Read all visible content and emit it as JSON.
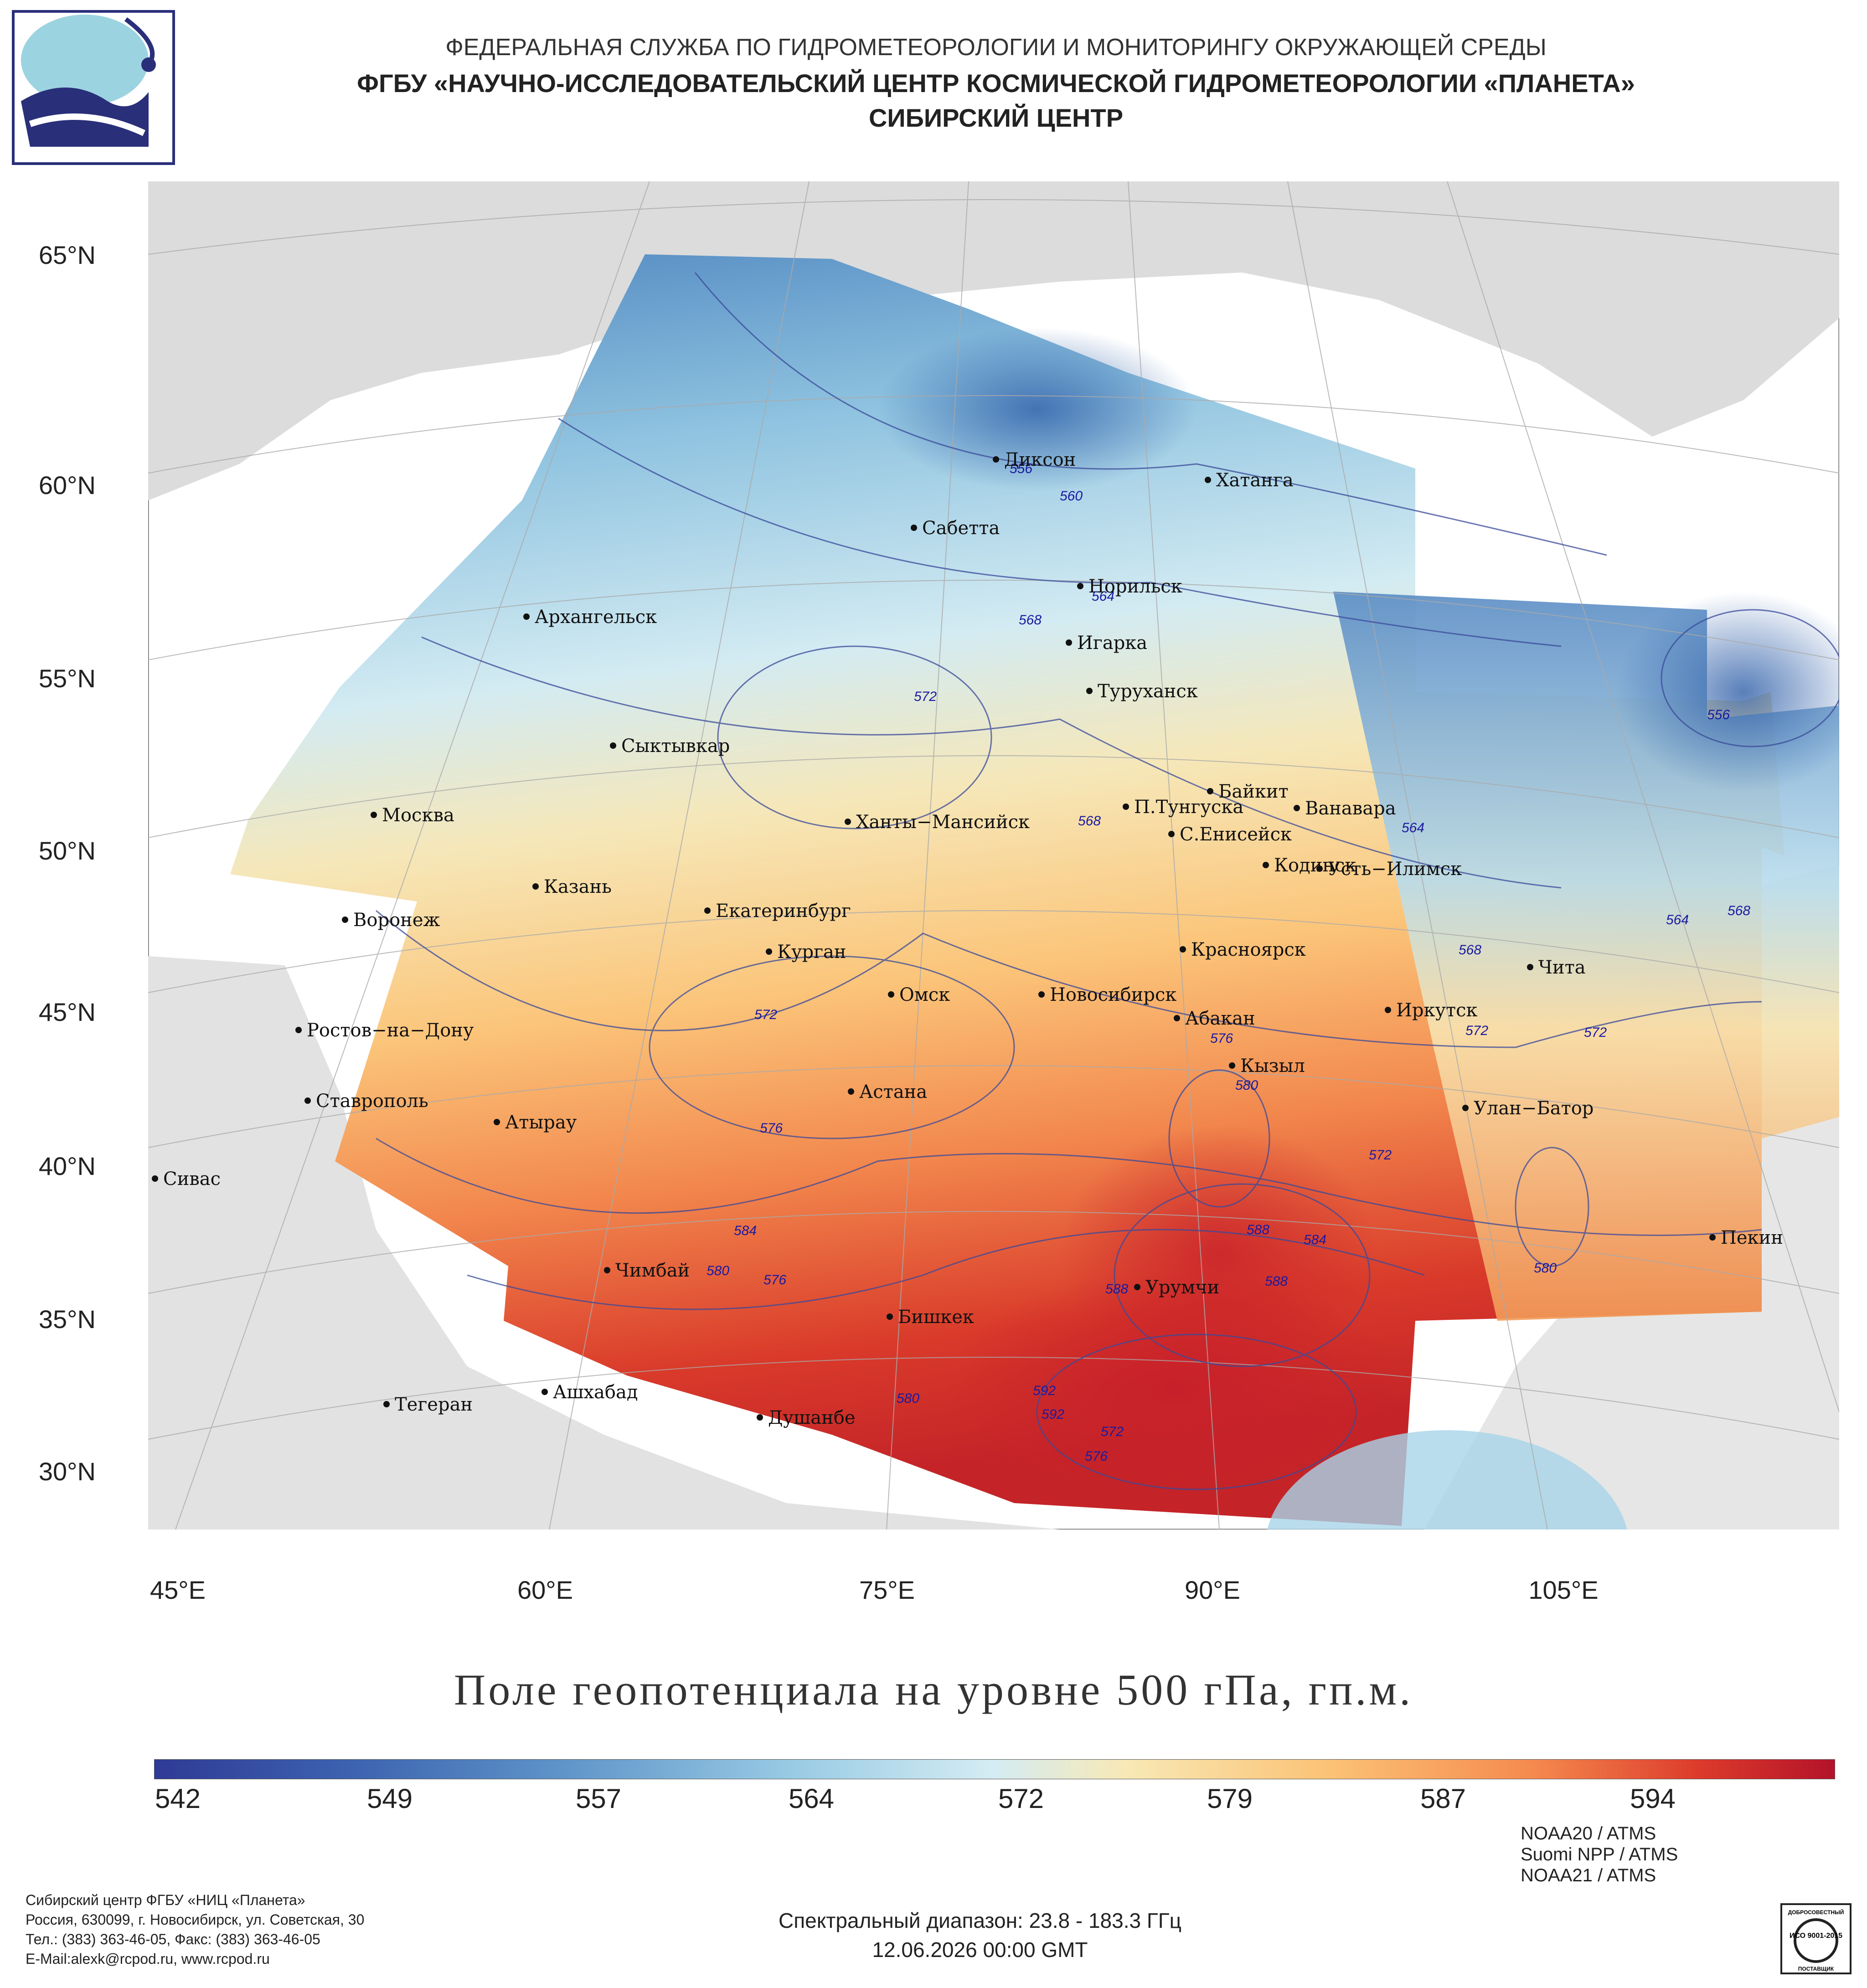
{
  "header": {
    "line1": "ФЕДЕРАЛЬНАЯ СЛУЖБА ПО ГИДРОМЕТЕОРОЛОГИИ И МОНИТОРИНГУ ОКРУЖАЮЩЕЙ СРЕДЫ",
    "line2": "ФГБУ «НАУЧНО-ИССЛЕДОВАТЕЛЬСКИЙ ЦЕНТР КОСМИЧЕСКОЙ ГИДРОМЕТЕОРОЛОГИИ «ПЛАНЕТА»",
    "line3": "СИБИРСКИЙ ЦЕНТР"
  },
  "map": {
    "lat_labels": [
      "65°N",
      "60°N",
      "55°N",
      "50°N",
      "45°N",
      "40°N",
      "35°N",
      "30°N"
    ],
    "lon_labels": [
      "45°E",
      "60°E",
      "75°E",
      "90°E",
      "105°E"
    ],
    "cities": [
      "Диксон",
      "Хатанга",
      "Сабетта",
      "Норильск",
      "Архангельск",
      "Игарка",
      "Туруханск",
      "Сыктывкар",
      "Байкит",
      "Москва",
      "П.Тунгуска",
      "Ванавара",
      "Ханты−Мансийск",
      "С.Енисейск",
      "Кодинск",
      "Усть−Илимск",
      "Казань",
      "Воронеж",
      "Екатеринбург",
      "Курган",
      "Красноярск",
      "Чита",
      "Омск",
      "Новосибирск",
      "Ростов−на−Дону",
      "Абакан",
      "Иркутск",
      "Кызыл",
      "Астана",
      "Ставрополь",
      "Улан−Батор",
      "Атырау",
      "Сивас",
      "Пекин",
      "Чимбай",
      "Урумчи",
      "Бишкек",
      "Ашхабад",
      "Тегеран",
      "Душанбе"
    ],
    "contour_labels": [
      "556",
      "560",
      "564",
      "568",
      "572",
      "576",
      "580",
      "584",
      "588",
      "592",
      "556",
      "564",
      "568",
      "568",
      "564",
      "568",
      "572",
      "576",
      "580",
      "584",
      "588",
      "588",
      "572",
      "580",
      "572",
      "572",
      "576",
      "580",
      "592",
      "572",
      "576"
    ],
    "colors": {
      "land": "#dcdcdc",
      "sea": "#ffffff",
      "contour": "#3a4a9a"
    }
  },
  "title": "Поле геопотенциала на уровне 500 гПа, гп.м.",
  "colorbar": {
    "ticks": [
      "542",
      "549",
      "557",
      "564",
      "572",
      "579",
      "587",
      "594"
    ],
    "min_color": "#2f3a96",
    "max_color": "#b3132a"
  },
  "footer": {
    "left": [
      "Сибирский центр ФГБУ «НИЦ «Планета»",
      "Россия, 630099, г. Новосибирск, ул. Советская, 30",
      "Тел.: (383) 363-46-05, Факс: (383) 363-46-05",
      "E-Mail:alexk@rcpod.ru, www.rcpod.ru"
    ],
    "spectral": "Спектральный диапазон: 23.8 - 183.3 ГГц",
    "datetime": "12.06.2026 00:00 GMT",
    "satellites": [
      "NOAA20 / ATMS",
      "Suomi NPP / ATMS",
      "NOAA21 / ATMS"
    ],
    "iso_text": "ИСО 9001-2015",
    "iso_top": "ДОБРОСОВЕСТНЫЙ",
    "iso_bottom": "ПОСТАВЩИК"
  }
}
